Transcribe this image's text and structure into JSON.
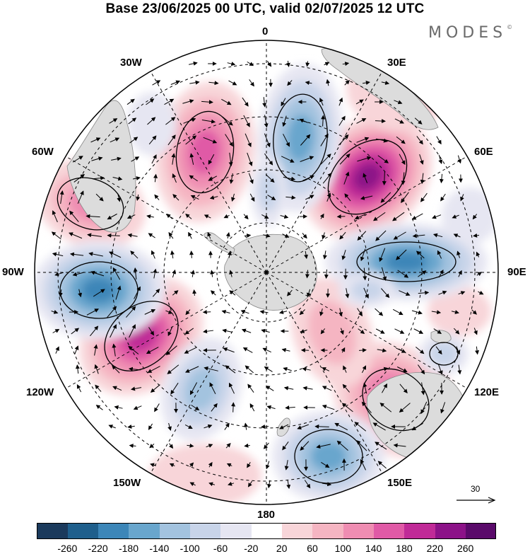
{
  "title": "Base 23/06/2025 00 UTC, valid 02/07/2025 12 UTC",
  "brand": "MODES",
  "brand_mark": "©",
  "longitude_labels": {
    "lon_0": "0",
    "lon_30e": "30E",
    "lon_60e": "60E",
    "lon_90e": "90E",
    "lon_120e": "120E",
    "lon_150e": "150E",
    "lon_180": "180",
    "lon_150w": "150W",
    "lon_120w": "120W",
    "lon_90w": "90W",
    "lon_60w": "60W",
    "lon_30w": "30W"
  },
  "reference_vector": {
    "value": "30"
  },
  "colorbar": {
    "ticks": [
      "-260",
      "-220",
      "-180",
      "-140",
      "-100",
      "-60",
      "-20",
      "20",
      "60",
      "100",
      "140",
      "180",
      "220",
      "260"
    ],
    "colors": [
      "#1b3a5c",
      "#1f5f8c",
      "#3c86b8",
      "#69a6cd",
      "#a3c3df",
      "#c8d4e9",
      "#e6e6f2",
      "#ffffff",
      "#f8d5d9",
      "#f5b5c2",
      "#ef8db2",
      "#e05aa6",
      "#c02a97",
      "#8c1288",
      "#5a0a6a"
    ]
  },
  "colors": {
    "land": "#dcdcdc",
    "ocean": "#ffffff",
    "graticule": "#000000"
  }
}
